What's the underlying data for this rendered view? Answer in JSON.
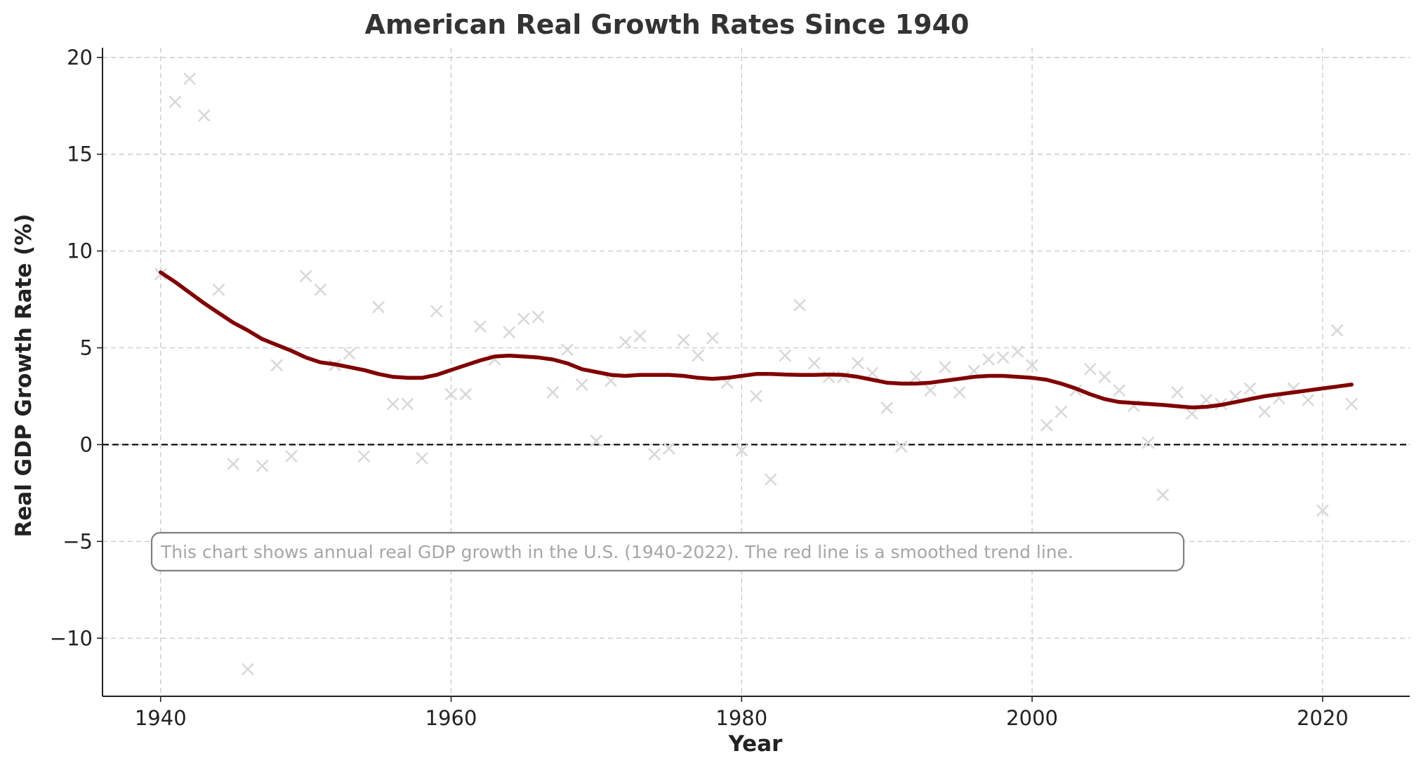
{
  "chart_data": {
    "type": "scatter",
    "title": "American Real Growth Rates Since 1940",
    "xlabel": "Year",
    "ylabel": "Real GDP Growth Rate (%)",
    "xlim": [
      1936,
      2026
    ],
    "ylim": [
      -13,
      20.5
    ],
    "xticks": [
      1940,
      1960,
      1980,
      2000,
      2020
    ],
    "yticks": [
      -10,
      -5,
      0,
      5,
      10,
      15,
      20
    ],
    "grid": true,
    "zero_line": true,
    "annotation": "This chart shows annual real GDP growth in the U.S. (1940-2022). The red line is a smoothed trend line.",
    "colors": {
      "points": "#d9d9d9",
      "trend": "#800000",
      "zero_line": "#000000"
    },
    "series": [
      {
        "kind": "scatter",
        "marker": "x",
        "x": [
          1940,
          1941,
          1942,
          1943,
          1944,
          1945,
          1946,
          1947,
          1948,
          1949,
          1950,
          1951,
          1952,
          1953,
          1954,
          1955,
          1956,
          1957,
          1958,
          1959,
          1960,
          1961,
          1962,
          1963,
          1964,
          1965,
          1966,
          1967,
          1968,
          1969,
          1970,
          1971,
          1972,
          1973,
          1974,
          1975,
          1976,
          1977,
          1978,
          1979,
          1980,
          1981,
          1982,
          1983,
          1984,
          1985,
          1986,
          1987,
          1988,
          1989,
          1990,
          1991,
          1992,
          1993,
          1994,
          1995,
          1996,
          1997,
          1998,
          1999,
          2000,
          2001,
          2002,
          2003,
          2004,
          2005,
          2006,
          2007,
          2008,
          2009,
          2010,
          2011,
          2012,
          2013,
          2014,
          2015,
          2016,
          2017,
          2018,
          2019,
          2020,
          2021,
          2022
        ],
        "values": [
          8.8,
          17.7,
          18.9,
          17.0,
          8.0,
          -1.0,
          -11.6,
          -1.1,
          4.1,
          -0.6,
          8.7,
          8.0,
          4.1,
          4.7,
          -0.6,
          7.1,
          2.1,
          2.1,
          -0.7,
          6.9,
          2.6,
          2.6,
          6.1,
          4.4,
          5.8,
          6.5,
          6.6,
          2.7,
          4.9,
          3.1,
          0.2,
          3.3,
          5.3,
          5.6,
          -0.5,
          -0.2,
          5.4,
          4.6,
          5.5,
          3.2,
          -0.3,
          2.5,
          -1.8,
          4.6,
          7.2,
          4.2,
          3.5,
          3.5,
          4.2,
          3.7,
          1.9,
          -0.1,
          3.5,
          2.8,
          4.0,
          2.7,
          3.8,
          4.4,
          4.5,
          4.8,
          4.1,
          1.0,
          1.7,
          2.8,
          3.9,
          3.5,
          2.8,
          2.0,
          0.1,
          -2.6,
          2.7,
          1.6,
          2.3,
          2.1,
          2.5,
          2.9,
          1.7,
          2.4,
          2.9,
          2.3,
          -3.4,
          5.9,
          2.1
        ]
      },
      {
        "kind": "line",
        "x": [
          1940,
          1941,
          1942,
          1943,
          1944,
          1945,
          1946,
          1947,
          1948,
          1949,
          1950,
          1951,
          1952,
          1953,
          1954,
          1955,
          1956,
          1957,
          1958,
          1959,
          1960,
          1961,
          1962,
          1963,
          1964,
          1965,
          1966,
          1967,
          1968,
          1969,
          1970,
          1971,
          1972,
          1973,
          1974,
          1975,
          1976,
          1977,
          1978,
          1979,
          1980,
          1981,
          1982,
          1983,
          1984,
          1985,
          1986,
          1987,
          1988,
          1989,
          1990,
          1991,
          1992,
          1993,
          1994,
          1995,
          1996,
          1997,
          1998,
          1999,
          2000,
          2001,
          2002,
          2003,
          2004,
          2005,
          2006,
          2007,
          2008,
          2009,
          2010,
          2011,
          2012,
          2013,
          2014,
          2015,
          2016,
          2017,
          2018,
          2019,
          2020,
          2021,
          2022
        ],
        "values": [
          8.9,
          8.4,
          7.85,
          7.3,
          6.8,
          6.3,
          5.9,
          5.45,
          5.15,
          4.85,
          4.5,
          4.25,
          4.15,
          4.0,
          3.85,
          3.65,
          3.5,
          3.45,
          3.45,
          3.6,
          3.85,
          4.1,
          4.35,
          4.55,
          4.6,
          4.55,
          4.5,
          4.4,
          4.2,
          3.9,
          3.75,
          3.6,
          3.55,
          3.6,
          3.6,
          3.6,
          3.55,
          3.45,
          3.4,
          3.45,
          3.55,
          3.65,
          3.65,
          3.62,
          3.6,
          3.6,
          3.62,
          3.6,
          3.5,
          3.35,
          3.2,
          3.15,
          3.15,
          3.2,
          3.3,
          3.4,
          3.5,
          3.55,
          3.55,
          3.5,
          3.45,
          3.35,
          3.15,
          2.9,
          2.6,
          2.35,
          2.2,
          2.15,
          2.1,
          2.05,
          1.98,
          1.92,
          1.95,
          2.05,
          2.2,
          2.35,
          2.5,
          2.6,
          2.7,
          2.8,
          2.9,
          3.0,
          3.1
        ]
      }
    ]
  }
}
